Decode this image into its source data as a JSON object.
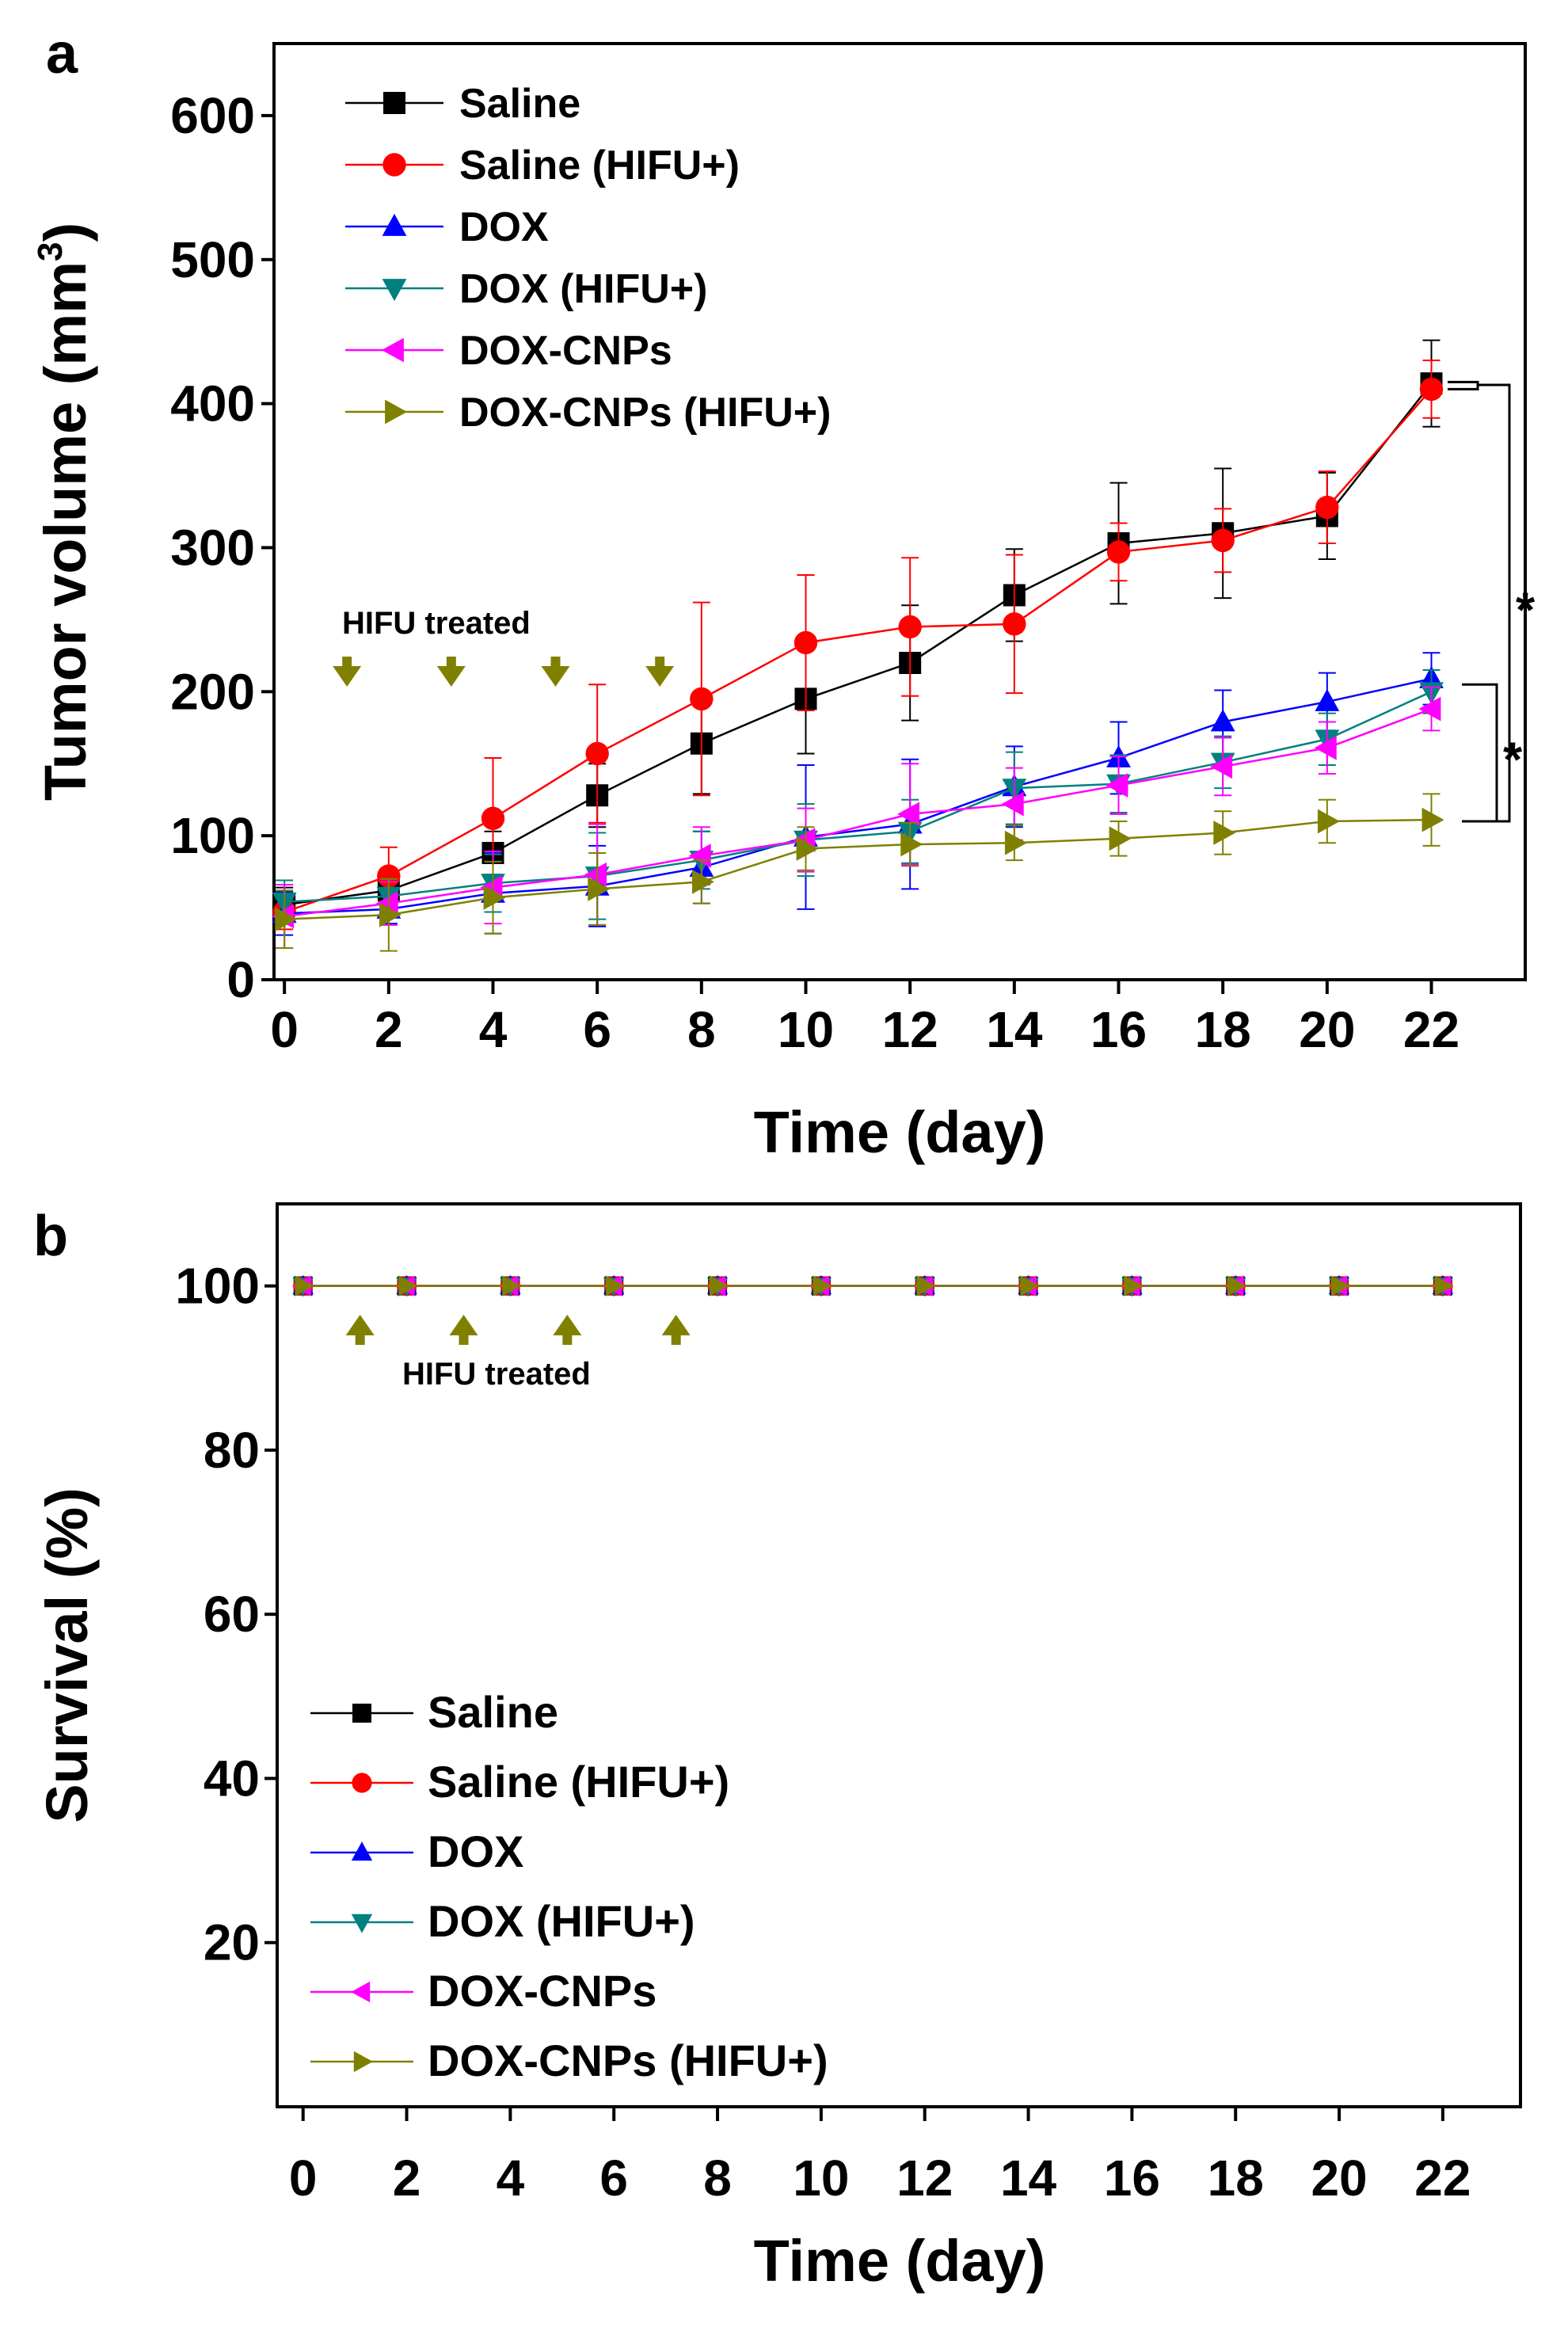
{
  "chart_data": [
    {
      "panel_label": "a",
      "type": "line",
      "title": "",
      "xlabel": "Time (day)",
      "ylabel": "Tumor volume (mm",
      "ylabel_sup": "3",
      "ylabel_close": ")",
      "xlim": [
        -0.2,
        23.8
      ],
      "ylim": [
        0,
        650
      ],
      "x_ticks": [
        0,
        2,
        4,
        6,
        8,
        10,
        12,
        14,
        16,
        18,
        20,
        22
      ],
      "y_ticks": [
        0,
        100,
        200,
        300,
        400,
        500,
        600
      ],
      "grid": false,
      "legend_position": "top-left",
      "annotation": {
        "text": "HIFU treated",
        "arrow_days": [
          1.2,
          3.2,
          5.2,
          7.2
        ],
        "arrow_direction": "down",
        "arrow_value": 200
      },
      "significance": [
        {
          "label": "",
          "from": 410,
          "to": 415,
          "level": "inner"
        },
        {
          "label": "*",
          "from": 110,
          "to": 205,
          "level": "middle"
        },
        {
          "label": "*",
          "from": 110,
          "to": 413,
          "level": "outer"
        }
      ],
      "series": [
        {
          "name": "Saline",
          "color": "#000000",
          "marker": "square",
          "x": [
            0,
            2,
            4,
            6,
            8,
            10,
            12,
            14,
            16,
            18,
            20,
            22
          ],
          "y": [
            52,
            62,
            88,
            128,
            164,
            195,
            220,
            267,
            303,
            310,
            322,
            414
          ],
          "err": [
            12,
            10,
            15,
            22,
            35,
            38,
            40,
            32,
            42,
            45,
            30,
            30
          ]
        },
        {
          "name": "Saline (HIFU+)",
          "color": "#ff0000",
          "marker": "circle",
          "x": [
            0,
            2,
            4,
            6,
            8,
            10,
            12,
            14,
            16,
            18,
            20,
            22
          ],
          "y": [
            47,
            72,
            112,
            157,
            195,
            234,
            245,
            247,
            297,
            305,
            328,
            410
          ],
          "err": [
            12,
            20,
            42,
            48,
            67,
            47,
            48,
            48,
            20,
            22,
            25,
            20
          ]
        },
        {
          "name": "DOX",
          "color": "#0000ff",
          "marker": "triangle-up",
          "x": [
            0,
            2,
            4,
            6,
            8,
            10,
            12,
            14,
            16,
            18,
            20,
            22
          ],
          "y": [
            46,
            49,
            60,
            65,
            78,
            99,
            108,
            134,
            154,
            179,
            193,
            209
          ],
          "err": [
            15,
            10,
            28,
            28,
            25,
            50,
            45,
            28,
            25,
            22,
            20,
            18
          ]
        },
        {
          "name": "DOX (HIFU+)",
          "color": "#008080",
          "marker": "triangle-down",
          "x": [
            0,
            2,
            4,
            6,
            8,
            10,
            12,
            14,
            16,
            18,
            20,
            22
          ],
          "y": [
            54,
            58,
            67,
            72,
            83,
            97,
            103,
            133,
            136,
            151,
            167,
            200
          ],
          "err": [
            15,
            12,
            20,
            30,
            20,
            25,
            22,
            25,
            20,
            18,
            18,
            15
          ]
        },
        {
          "name": "DOX-CNPs",
          "color": "#ff00ff",
          "marker": "triangle-left",
          "x": [
            0,
            2,
            4,
            6,
            8,
            10,
            12,
            14,
            16,
            18,
            20,
            22
          ],
          "y": [
            44,
            53,
            64,
            73,
            86,
            97,
            115,
            122,
            135,
            148,
            161,
            188
          ],
          "err": [
            22,
            15,
            25,
            35,
            20,
            22,
            35,
            25,
            20,
            20,
            18,
            15
          ]
        },
        {
          "name": "DOX-CNPs (HIFU+)",
          "color": "#808000",
          "marker": "triangle-right",
          "x": [
            0,
            2,
            4,
            6,
            8,
            10,
            12,
            14,
            16,
            18,
            20,
            22
          ],
          "y": [
            42,
            45,
            57,
            63,
            68,
            91,
            94,
            95,
            98,
            102,
            110,
            111
          ],
          "err": [
            20,
            25,
            25,
            25,
            15,
            15,
            15,
            12,
            12,
            15,
            15,
            18
          ]
        }
      ]
    },
    {
      "panel_label": "b",
      "type": "line",
      "title": "",
      "xlabel": "Time (day)",
      "ylabel": "Survival (%)",
      "xlim": [
        -0.5,
        23.5
      ],
      "ylim": [
        0,
        110
      ],
      "x_ticks": [
        0,
        2,
        4,
        6,
        8,
        10,
        12,
        14,
        16,
        18,
        20,
        22
      ],
      "y_ticks": [
        20,
        40,
        60,
        80,
        100
      ],
      "grid": false,
      "legend_position": "bottom-left",
      "annotation": {
        "text": "HIFU treated",
        "arrow_days": [
          1.1,
          3.1,
          5.1,
          7.2
        ],
        "arrow_direction": "up",
        "arrow_value": 100
      },
      "series": [
        {
          "name": "Saline",
          "color": "#000000",
          "marker": "square",
          "x": [
            0,
            2,
            4,
            6,
            8,
            10,
            12,
            14,
            16,
            18,
            20,
            22
          ],
          "y": [
            100,
            100,
            100,
            100,
            100,
            100,
            100,
            100,
            100,
            100,
            100,
            100
          ]
        },
        {
          "name": "Saline (HIFU+)",
          "color": "#ff0000",
          "marker": "circle",
          "x": [
            0,
            2,
            4,
            6,
            8,
            10,
            12,
            14,
            16,
            18,
            20,
            22
          ],
          "y": [
            100,
            100,
            100,
            100,
            100,
            100,
            100,
            100,
            100,
            100,
            100,
            100
          ]
        },
        {
          "name": "DOX",
          "color": "#0000ff",
          "marker": "triangle-up",
          "x": [
            0,
            2,
            4,
            6,
            8,
            10,
            12,
            14,
            16,
            18,
            20,
            22
          ],
          "y": [
            100,
            100,
            100,
            100,
            100,
            100,
            100,
            100,
            100,
            100,
            100,
            100
          ]
        },
        {
          "name": "DOX (HIFU+)",
          "color": "#008080",
          "marker": "triangle-down",
          "x": [
            0,
            2,
            4,
            6,
            8,
            10,
            12,
            14,
            16,
            18,
            20,
            22
          ],
          "y": [
            100,
            100,
            100,
            100,
            100,
            100,
            100,
            100,
            100,
            100,
            100,
            100
          ]
        },
        {
          "name": "DOX-CNPs",
          "color": "#ff00ff",
          "marker": "triangle-left",
          "x": [
            0,
            2,
            4,
            6,
            8,
            10,
            12,
            14,
            16,
            18,
            20,
            22
          ],
          "y": [
            100,
            100,
            100,
            100,
            100,
            100,
            100,
            100,
            100,
            100,
            100,
            100
          ]
        },
        {
          "name": "DOX-CNPs (HIFU+)",
          "color": "#808000",
          "marker": "triangle-right",
          "x": [
            0,
            2,
            4,
            6,
            8,
            10,
            12,
            14,
            16,
            18,
            20,
            22
          ],
          "y": [
            100,
            100,
            100,
            100,
            100,
            100,
            100,
            100,
            100,
            100,
            100,
            100
          ]
        }
      ]
    }
  ]
}
